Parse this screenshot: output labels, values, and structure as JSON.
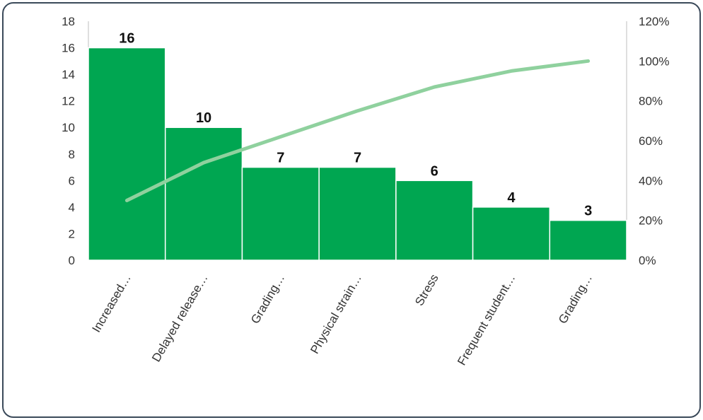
{
  "chart_data": {
    "type": "bar",
    "categories": [
      "Increased…",
      "Delayed release…",
      "Grading…",
      "Physical strain…",
      "Stress",
      "Frequent student…",
      "Grading…"
    ],
    "series": [
      {
        "type": "bar",
        "values": [
          16,
          10,
          7,
          7,
          6,
          4,
          3
        ]
      },
      {
        "type": "line",
        "axis": "right",
        "values": [
          30,
          49,
          62,
          75,
          87,
          95,
          100
        ]
      }
    ],
    "ylim": [
      0,
      18
    ],
    "yticks": [
      0,
      2,
      4,
      6,
      8,
      10,
      12,
      14,
      16,
      18
    ],
    "y2lim": [
      0,
      120
    ],
    "y2ticks": [
      0,
      20,
      40,
      60,
      80,
      100,
      120
    ],
    "y2tick_suffix": "%",
    "data_labels": true,
    "grid": false,
    "legend": "none",
    "colors": {
      "bar": "#00a651",
      "bar_border": "#ffffff",
      "line": "#8fd19e",
      "axis": "#bfbfbf",
      "frame": "#3b4a5a"
    }
  }
}
